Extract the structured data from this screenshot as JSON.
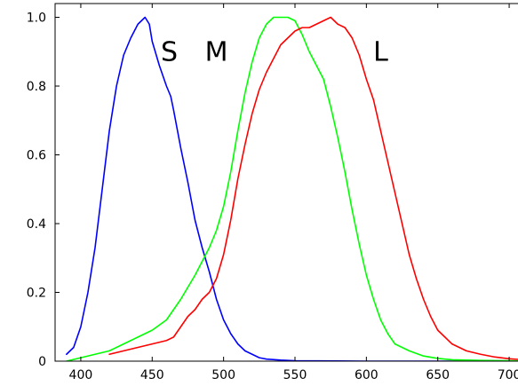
{
  "chart_data": {
    "type": "line",
    "title": "",
    "xlabel": "",
    "ylabel": "",
    "xlim": [
      382,
      718
    ],
    "ylim": [
      0,
      1.04
    ],
    "grid": false,
    "legend": "none",
    "x_ticks": [
      400,
      450,
      500,
      550,
      600,
      650,
      700
    ],
    "x_tick_labels": [
      "400",
      "450",
      "500",
      "550",
      "600",
      "650",
      "700"
    ],
    "y_ticks": [
      0,
      0.2,
      0.4,
      0.6,
      0.8,
      1.0
    ],
    "y_tick_labels": [
      "0",
      "0.2",
      "0.4",
      "0.6",
      "0.8",
      "1.0"
    ],
    "annotations": [
      {
        "text": "S",
        "x": 462,
        "y": 0.9
      },
      {
        "text": "M",
        "x": 495,
        "y": 0.9
      },
      {
        "text": "L",
        "x": 610,
        "y": 0.9
      }
    ],
    "series": [
      {
        "color": "#0000ff",
        "points": [
          [
            390,
            0.02
          ],
          [
            395,
            0.04
          ],
          [
            400,
            0.1
          ],
          [
            405,
            0.2
          ],
          [
            410,
            0.33
          ],
          [
            415,
            0.5
          ],
          [
            420,
            0.67
          ],
          [
            425,
            0.8
          ],
          [
            430,
            0.89
          ],
          [
            435,
            0.94
          ],
          [
            440,
            0.98
          ],
          [
            445,
            1.0
          ],
          [
            448,
            0.98
          ],
          [
            450,
            0.93
          ],
          [
            455,
            0.86
          ],
          [
            460,
            0.8
          ],
          [
            463,
            0.77
          ],
          [
            465,
            0.73
          ],
          [
            470,
            0.62
          ],
          [
            475,
            0.52
          ],
          [
            480,
            0.41
          ],
          [
            485,
            0.33
          ],
          [
            490,
            0.26
          ],
          [
            495,
            0.18
          ],
          [
            500,
            0.12
          ],
          [
            505,
            0.08
          ],
          [
            510,
            0.05
          ],
          [
            515,
            0.03
          ],
          [
            520,
            0.02
          ],
          [
            525,
            0.01
          ],
          [
            530,
            0.006
          ],
          [
            540,
            0.003
          ],
          [
            550,
            0.001
          ],
          [
            600,
            0.0
          ],
          [
            700,
            0.0
          ],
          [
            720,
            0.0
          ]
        ]
      },
      {
        "color": "#00ff00",
        "points": [
          [
            390,
            0.0
          ],
          [
            400,
            0.01
          ],
          [
            410,
            0.02
          ],
          [
            420,
            0.03
          ],
          [
            430,
            0.05
          ],
          [
            440,
            0.07
          ],
          [
            450,
            0.09
          ],
          [
            460,
            0.12
          ],
          [
            470,
            0.18
          ],
          [
            480,
            0.25
          ],
          [
            490,
            0.33
          ],
          [
            495,
            0.38
          ],
          [
            500,
            0.45
          ],
          [
            505,
            0.55
          ],
          [
            510,
            0.67
          ],
          [
            515,
            0.78
          ],
          [
            520,
            0.87
          ],
          [
            525,
            0.94
          ],
          [
            530,
            0.98
          ],
          [
            535,
            1.0
          ],
          [
            540,
            1.0
          ],
          [
            545,
            1.0
          ],
          [
            550,
            0.99
          ],
          [
            555,
            0.95
          ],
          [
            560,
            0.9
          ],
          [
            565,
            0.86
          ],
          [
            570,
            0.82
          ],
          [
            575,
            0.74
          ],
          [
            580,
            0.65
          ],
          [
            585,
            0.55
          ],
          [
            590,
            0.44
          ],
          [
            595,
            0.34
          ],
          [
            600,
            0.25
          ],
          [
            605,
            0.18
          ],
          [
            610,
            0.12
          ],
          [
            615,
            0.08
          ],
          [
            620,
            0.05
          ],
          [
            630,
            0.03
          ],
          [
            640,
            0.015
          ],
          [
            650,
            0.008
          ],
          [
            660,
            0.004
          ],
          [
            680,
            0.002
          ],
          [
            700,
            0.001
          ],
          [
            720,
            0.0
          ]
        ]
      },
      {
        "color": "#ff0000",
        "points": [
          [
            420,
            0.02
          ],
          [
            430,
            0.03
          ],
          [
            440,
            0.04
          ],
          [
            450,
            0.05
          ],
          [
            460,
            0.06
          ],
          [
            465,
            0.07
          ],
          [
            470,
            0.1
          ],
          [
            475,
            0.13
          ],
          [
            480,
            0.15
          ],
          [
            485,
            0.18
          ],
          [
            490,
            0.2
          ],
          [
            495,
            0.24
          ],
          [
            500,
            0.31
          ],
          [
            505,
            0.41
          ],
          [
            510,
            0.53
          ],
          [
            515,
            0.63
          ],
          [
            520,
            0.72
          ],
          [
            525,
            0.79
          ],
          [
            530,
            0.84
          ],
          [
            535,
            0.88
          ],
          [
            540,
            0.92
          ],
          [
            545,
            0.94
          ],
          [
            550,
            0.96
          ],
          [
            555,
            0.97
          ],
          [
            560,
            0.97
          ],
          [
            565,
            0.98
          ],
          [
            570,
            0.99
          ],
          [
            575,
            1.0
          ],
          [
            580,
            0.98
          ],
          [
            585,
            0.97
          ],
          [
            590,
            0.94
          ],
          [
            595,
            0.89
          ],
          [
            600,
            0.82
          ],
          [
            605,
            0.76
          ],
          [
            610,
            0.67
          ],
          [
            615,
            0.58
          ],
          [
            620,
            0.49
          ],
          [
            625,
            0.4
          ],
          [
            630,
            0.31
          ],
          [
            635,
            0.24
          ],
          [
            640,
            0.18
          ],
          [
            645,
            0.13
          ],
          [
            650,
            0.09
          ],
          [
            655,
            0.07
          ],
          [
            660,
            0.05
          ],
          [
            670,
            0.03
          ],
          [
            680,
            0.02
          ],
          [
            690,
            0.012
          ],
          [
            700,
            0.007
          ],
          [
            710,
            0.004
          ],
          [
            720,
            0.002
          ]
        ]
      }
    ]
  }
}
